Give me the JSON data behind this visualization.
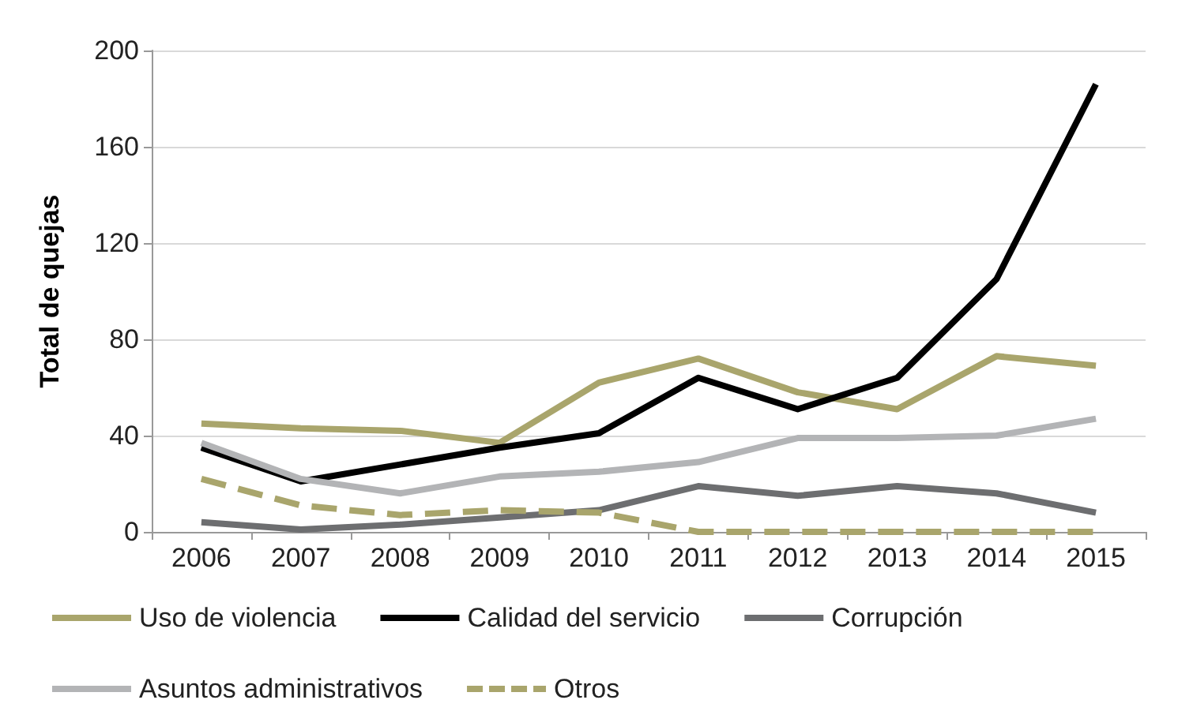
{
  "chart_data": {
    "type": "line",
    "ylabel": "Total de quejas",
    "categories": [
      "2006",
      "2007",
      "2008",
      "2009",
      "2010",
      "2011",
      "2012",
      "2013",
      "2014",
      "2015"
    ],
    "series": [
      {
        "name": "Uso de violencia",
        "color": "#a9a56c",
        "values": [
          45,
          43,
          42,
          37,
          62,
          72,
          58,
          51,
          73,
          69
        ]
      },
      {
        "name": "Calidad del servicio",
        "color": "#000000",
        "values": [
          35,
          21,
          28,
          35,
          41,
          64,
          51,
          64,
          105,
          186
        ]
      },
      {
        "name": "Corrupción",
        "color": "#6d6e70",
        "values": [
          4,
          1,
          3,
          6,
          9,
          19,
          15,
          19,
          16,
          8
        ]
      },
      {
        "name": "Asuntos administrativos",
        "color": "#b3b4b6",
        "values": [
          37,
          22,
          16,
          23,
          25,
          29,
          39,
          39,
          40,
          47
        ]
      },
      {
        "name": "Otros",
        "color": "#a9a56c",
        "line_style": "dashed",
        "values": [
          22,
          11,
          7,
          9,
          8,
          0,
          0,
          0,
          0,
          0
        ]
      }
    ],
    "ylim": [
      0,
      200
    ],
    "yticks": [
      0,
      40,
      80,
      120,
      160,
      200
    ],
    "grid": "y",
    "legend": "bottom",
    "marker": "none",
    "line_style": "solid"
  }
}
